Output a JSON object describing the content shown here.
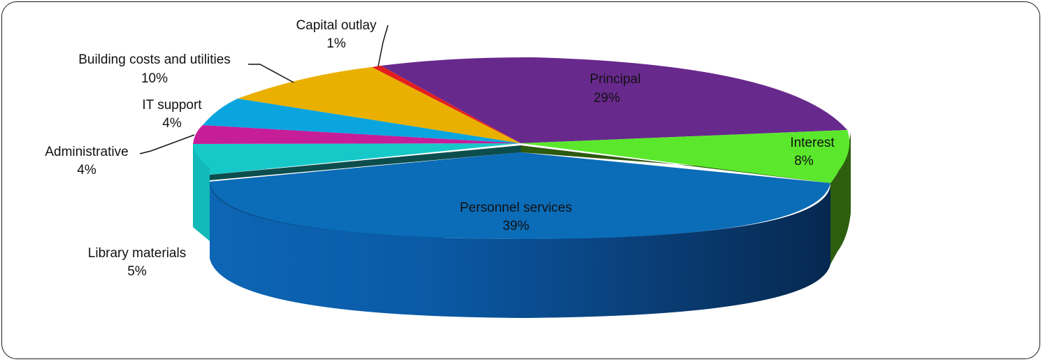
{
  "chart_data": {
    "type": "pie",
    "style": "3d",
    "unit": "%",
    "slices": [
      {
        "name": "Personnel services",
        "value": 39,
        "label": "Personnel services",
        "value_label": "39%",
        "color": "#0b6cb8",
        "exploded": true
      },
      {
        "name": "Interest",
        "value": 8,
        "label": "Interest",
        "value_label": "8%",
        "color": "#5be82c"
      },
      {
        "name": "Principal",
        "value": 29,
        "label": "Principal",
        "value_label": "29%",
        "color": "#68298d"
      },
      {
        "name": "Capital outlay",
        "value": 1,
        "label": "Capital outlay",
        "value_label": "1%",
        "color": "#e41e1e"
      },
      {
        "name": "Building costs and utilities",
        "value": 10,
        "label": "Building costs and utilities",
        "value_label": "10%",
        "color": "#e9b000"
      },
      {
        "name": "IT support",
        "value": 4,
        "label": "IT support",
        "value_label": "4%",
        "color": "#0aa5df"
      },
      {
        "name": "Administrative",
        "value": 4,
        "label": "Administrative",
        "value_label": "4%",
        "color": "#c61d99"
      },
      {
        "name": "Library materials",
        "value": 5,
        "label": "Library materials",
        "value_label": "5%",
        "color": "#17c8c8"
      }
    ]
  }
}
